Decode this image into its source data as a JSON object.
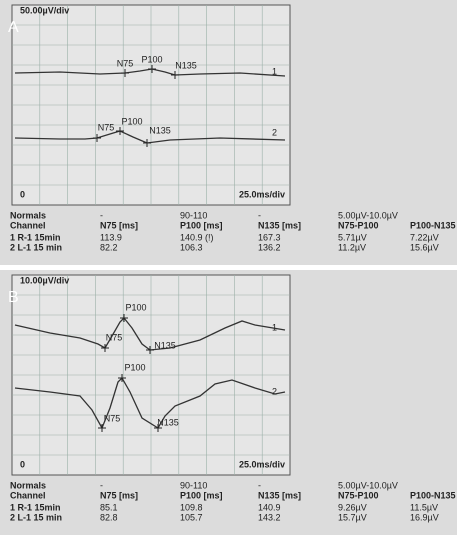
{
  "panels": [
    {
      "label": "A",
      "scale": "50.00µV/div",
      "time_scale": "25.0ms/div",
      "origin": "0",
      "traces": [
        {
          "number": "1",
          "peaks": [
            "N75",
            "P100",
            "N135"
          ]
        },
        {
          "number": "2",
          "peaks": [
            "N75",
            "P100",
            "N135"
          ]
        }
      ],
      "table": {
        "rows": [
          [
            "Normals",
            "-",
            "90-110",
            "-",
            "5.00µV-10.0µV"
          ],
          [
            "Channel",
            "N75 [ms]",
            "P100 [ms]",
            "N135 [ms]",
            "N75-P100",
            "P100-N135"
          ],
          [
            "1 R-1 15min",
            "113.9",
            "140.9 (!)",
            "167.3",
            "5.71µV",
            "7.22µV"
          ],
          [
            "2 L-1 15 min",
            "82.2",
            "106.3",
            "136.2",
            "11.2µV",
            "15.6µV"
          ]
        ]
      }
    },
    {
      "label": "B",
      "scale": "10.00µV/div",
      "time_scale": "25.0ms/div",
      "origin": "0",
      "traces": [
        {
          "number": "1",
          "peaks": [
            "N75",
            "P100",
            "N135"
          ]
        },
        {
          "number": "2",
          "peaks": [
            "N75",
            "P100",
            "N135"
          ]
        }
      ],
      "table": {
        "rows": [
          [
            "Normals",
            "-",
            "90-110",
            "-",
            "5.00µV-10.0µV"
          ],
          [
            "Channel",
            "N75 [ms]",
            "P100 [ms]",
            "N135 [ms]",
            "N75-P100",
            "P100-N135"
          ],
          [
            "1 R-1 15min",
            "85.1",
            "109.8",
            "140.9",
            "9.26µV",
            "11.5µV"
          ],
          [
            "2 L-1 15 min",
            "82.8",
            "105.7",
            "143.2",
            "15.7µV",
            "16.9µV"
          ]
        ]
      }
    }
  ]
}
